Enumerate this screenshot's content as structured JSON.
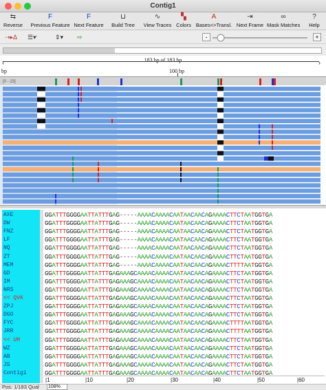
{
  "window": {
    "title": "Contig1",
    "controls": {
      "close": "#fe5f57",
      "minimize": "#febc2e",
      "zoom": "#28c840"
    }
  },
  "toolbar": {
    "items": [
      {
        "label": "Reverse",
        "icon": "reverse-icon"
      },
      {
        "label": "Previous Feature",
        "icon": "previous-feature-icon"
      },
      {
        "label": "Next Feature",
        "icon": "next-feature-icon"
      },
      {
        "label": "Build Tree",
        "icon": "tree-icon"
      },
      {
        "label": "View Traces",
        "icon": "traces-icon"
      },
      {
        "label": "Colors",
        "icon": "colors-icon"
      },
      {
        "label": "Bases<>Transl.",
        "icon": "translate-icon"
      },
      {
        "label": "Next Frame",
        "icon": "frame-icon"
      },
      {
        "label": "Mask Matches",
        "icon": "mask-icon"
      },
      {
        "label": "Help",
        "icon": "help-icon"
      }
    ]
  },
  "toolbar2": {
    "minus": "-",
    "plus": "+"
  },
  "ruler": {
    "length_label": "183 bp of 183 bp",
    "tick_left": "bp",
    "tick_100": "100 bp",
    "range_label": "[0 - 23]"
  },
  "sequences": {
    "names": [
      "AXE",
      "DW",
      "FNZ",
      "LF",
      "NQ",
      "ZT",
      "MEM",
      "GD",
      "IM",
      "NRS",
      "<< QVK",
      "ZPJ",
      "DGO",
      "FYC",
      "JRR",
      "<< UM",
      "WZ",
      "AB",
      "JS",
      "Contig1"
    ],
    "red_names": [
      "<< QVK",
      "<< UM"
    ],
    "rows": [
      "GGATTTGGGGAATTATTTGAG-----AAAACAAAACAATAACAACAGAAAACTTCTAATGGTGA",
      "GGATTTGGGGAATTATTTGAG-----AAAACAAAACAATAACAACAGAAAACTTCTAATGGTGA",
      "GGATTTGGGGAATTATTTGAG-----AAAACAAAACAATAACAACAGAAAACTTCTAATGGTGA",
      "GGATTTGGGGAATTATTTGAG-----AAAACAAAACAATAACAACAGAAAACTTCTAATGGTGA",
      "GGATTTGGGGAATTATTTGAG-----AAAACAAAACAATAACAACAGAAAACTTCTAATGGTGA",
      "GGATTTGGGGAATTATTTGAG-----AAAACAAAACAATAACAACAGAAAACTTCTAATGGTGA",
      "GGATTTGGGGAATTATTTGAG-----AAAACAAAACAATAACAACAGAAAACTTTTAATGGTGA",
      "GGATTTGGGGAATTATTTGAGAAAGCAAAACAAAACAATAACAACAGAAAACTTCTAATGGTGA",
      "GGATTTGGGGAATTATTTGAGAAAGCAAAACAAAACAATAACAACAGAAAACTTCTAATGGTGA",
      "GGATTTGGGGAATTATTTGAGAAAGCAAAACAAAACAATAACAACAGAAAACTTCTAATGGTGA",
      "GGATTTGGGGAATTATTTGAGAAAGCAAAACAAAACAATAACAACAGAAAACTTCTAATGGTGA",
      "GGATTTGGGGAATTATTTGAGAAAGCAAAACAAAACAATAACAACAGAAAACTTCTAATGGTGA",
      "GGATTTGGGGAATTATTTGAGAAAGCAAAACAAAACAATAACAACAGAAAACTTCTAATGGTGA",
      "GGATTTGGGGAATTATTTGAGAAAGCAAAACAAAACAATAACAACAGAAAACTTTTAATGGTGA",
      "GGATTTGGGGAATTATTTGAGAAAGCAAAACAAAACAATAACAACAGAAAACTTTTAATGGTGA",
      "GGATTTGGGGAATTATTTGAGAAAGCAAAACAAAACAATAACAACAGAAAACTTCTAATGGTGA",
      "GGATTTGGGGAATTATTTGAGAAAGCAAAACAAAACAATAACAACAGAAAACTTCTAATGGTGA",
      "GGATTTGGGGAATTATTTGAGAAAGCAAAACAAAACAATAACAACAGAAAACTTCTAATGGTGA",
      "GGATTTGGGGAATTATTTGAGAAAGCAAAACAAAACAATAACAACAGAAAACTTCTAATGGTGA",
      "GGATTTGGGGAATTATTTGAGAAAGCAAAACAAAACAATAACAACAGAAAACTTCTAATGGTGA"
    ],
    "ruler_ticks": [
      "1",
      "10",
      "20",
      "30",
      "40",
      "50",
      "60"
    ],
    "base_colors": {
      "A": "#1a9a1a",
      "C": "#1a3cd8",
      "G": "#222222",
      "T": "#d8201a",
      "-": "#555555"
    }
  },
  "trace_colors": {
    "read": "#6b9de0",
    "highlight": "#f3b077",
    "conflict_dark": "#111111",
    "blue": "#1f2fd6",
    "red": "#d8201a",
    "green": "#1a9a5a"
  },
  "status": {
    "position": "Pos: 1/183",
    "qual": "Qual",
    "zoom": "108%"
  }
}
